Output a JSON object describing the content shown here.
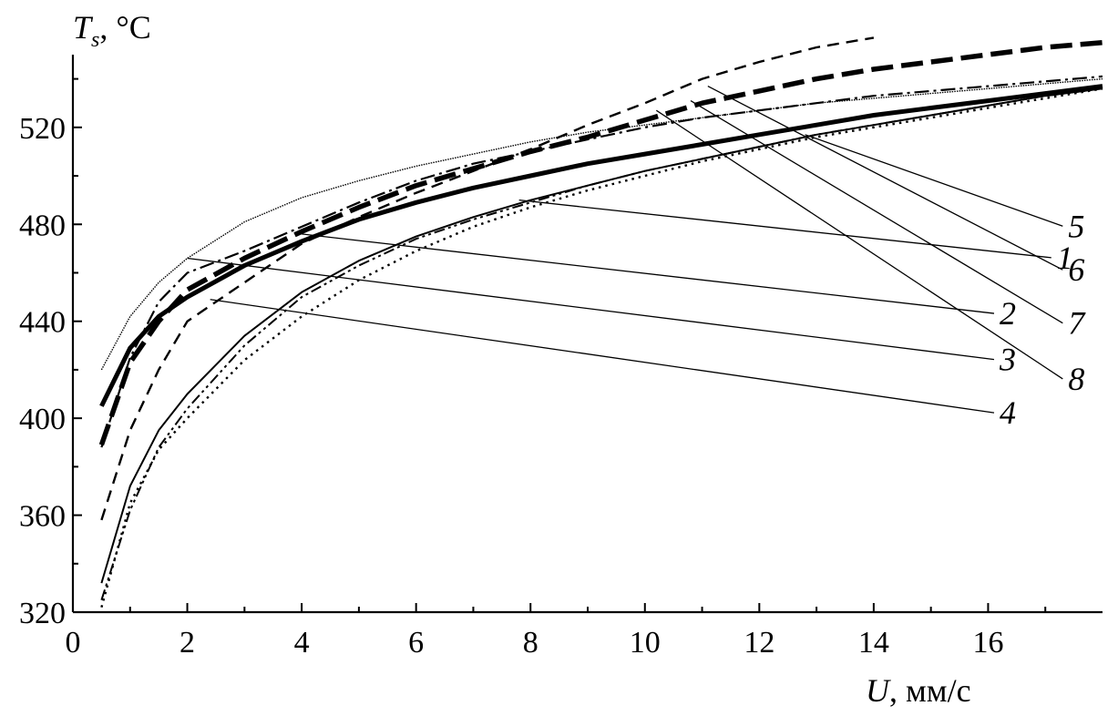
{
  "chart_data": {
    "type": "line",
    "title": "",
    "ylabel": {
      "var": "T",
      "sub": "s",
      "unit": ", °C"
    },
    "xlabel": {
      "var": "U",
      "unit": ", мм/с"
    },
    "xlim": [
      0,
      18
    ],
    "ylim": [
      320,
      550
    ],
    "x_ticks": [
      0,
      2,
      4,
      6,
      8,
      10,
      12,
      14,
      16
    ],
    "y_ticks": [
      320,
      360,
      400,
      440,
      480,
      520
    ],
    "grid": false,
    "series": [
      {
        "name": "1",
        "style": "solid-thin",
        "x": [
          0.5,
          1,
          1.5,
          2,
          3,
          4,
          5,
          6,
          7,
          8,
          9,
          10,
          11,
          12,
          13,
          14,
          15,
          16,
          17,
          18
        ],
        "y": [
          332,
          372,
          395,
          410,
          434,
          452,
          465,
          475,
          483,
          490,
          496,
          502,
          507,
          512,
          517,
          521,
          525,
          529,
          533,
          536
        ]
      },
      {
        "name": "2",
        "style": "solid-thick",
        "x": [
          0.5,
          1,
          1.5,
          2,
          3,
          4,
          5,
          6,
          7,
          8,
          9,
          10,
          11,
          12,
          13,
          14,
          15,
          16,
          17,
          18
        ],
        "y": [
          405,
          429,
          442,
          450,
          463,
          473,
          482,
          489,
          495,
          500,
          505,
          509,
          513,
          517,
          521,
          525,
          528,
          531,
          534,
          537
        ]
      },
      {
        "name": "3",
        "style": "dashdot",
        "x": [
          0.5,
          1,
          1.5,
          2,
          3,
          4,
          5,
          6,
          7,
          8,
          9,
          10,
          11,
          12,
          13,
          14,
          15,
          16,
          17,
          18
        ],
        "y": [
          388,
          425,
          448,
          460,
          469,
          479,
          489,
          498,
          505,
          510,
          515,
          520,
          524,
          527,
          530,
          533,
          535,
          537,
          539,
          541
        ]
      },
      {
        "name": "4",
        "style": "dashdotdot",
        "x": [
          0.5,
          1,
          1.5,
          2,
          3,
          4,
          5,
          6,
          7,
          8,
          9,
          10,
          11,
          12,
          13,
          14,
          15,
          16,
          17,
          18
        ],
        "y": [
          325,
          362,
          388,
          404,
          430,
          450,
          463,
          474,
          482,
          489,
          496,
          502,
          507,
          512,
          517,
          521,
          525,
          529,
          533,
          536
        ]
      },
      {
        "name": "5",
        "style": "dotted",
        "x": [
          0.5,
          1,
          1.5,
          2,
          3,
          4,
          5,
          6,
          7,
          8,
          9,
          10,
          11,
          12,
          13,
          14,
          15,
          16,
          17,
          18
        ],
        "y": [
          322,
          365,
          387,
          400,
          424,
          442,
          457,
          469,
          479,
          487,
          494,
          500,
          506,
          511,
          516,
          520,
          524,
          528,
          532,
          536
        ]
      },
      {
        "name": "6",
        "style": "thin-serrated",
        "x": [
          0.5,
          1,
          1.5,
          2,
          3,
          4,
          5,
          6,
          7,
          8,
          9,
          10,
          11,
          12,
          13,
          14,
          15,
          16,
          17,
          18
        ],
        "y": [
          420,
          442,
          456,
          466,
          481,
          491,
          498,
          504,
          509,
          514,
          518,
          521,
          524,
          527,
          530,
          532,
          534,
          536,
          538,
          540
        ]
      },
      {
        "name": "7",
        "style": "thick-dash",
        "x": [
          0.5,
          1,
          1.5,
          2,
          3,
          4,
          5,
          6,
          7,
          8,
          9,
          10,
          11,
          12,
          13,
          14,
          15,
          16,
          17,
          18
        ],
        "y": [
          389,
          423,
          440,
          453,
          466,
          477,
          487,
          496,
          503,
          510,
          516,
          523,
          530,
          535,
          540,
          544,
          547,
          550,
          553,
          555
        ]
      },
      {
        "name": "8",
        "style": "dashed",
        "x": [
          0.5,
          1,
          1.5,
          2,
          3,
          4,
          5,
          6,
          7,
          8,
          9,
          10,
          11,
          12,
          13,
          14
        ],
        "y": [
          358,
          395,
          420,
          440,
          456,
          472,
          483,
          493,
          502,
          511,
          521,
          530,
          540,
          547,
          553,
          557
        ]
      }
    ],
    "curve_labels": [
      {
        "name": "1",
        "label": "1",
        "at": [
          7.8,
          490
        ],
        "text": [
          17.2,
          467
        ]
      },
      {
        "name": "2",
        "label": "2",
        "at": [
          4.0,
          476
        ],
        "text": [
          16.2,
          444
        ]
      },
      {
        "name": "3",
        "label": "3",
        "at": [
          2.0,
          466
        ],
        "text": [
          16.2,
          425
        ]
      },
      {
        "name": "4",
        "label": "4",
        "at": [
          2.4,
          449
        ],
        "text": [
          16.2,
          403
        ]
      },
      {
        "name": "5",
        "label": "5",
        "at": [
          12.8,
          517
        ],
        "text": [
          17.4,
          480
        ]
      },
      {
        "name": "6",
        "label": "6",
        "at": [
          11.1,
          537
        ],
        "text": [
          17.4,
          462
        ]
      },
      {
        "name": "7",
        "label": "7",
        "at": [
          10.8,
          531
        ],
        "text": [
          17.4,
          440
        ]
      },
      {
        "name": "8",
        "label": "8",
        "at": [
          10.2,
          527
        ],
        "text": [
          17.4,
          417
        ]
      }
    ]
  }
}
